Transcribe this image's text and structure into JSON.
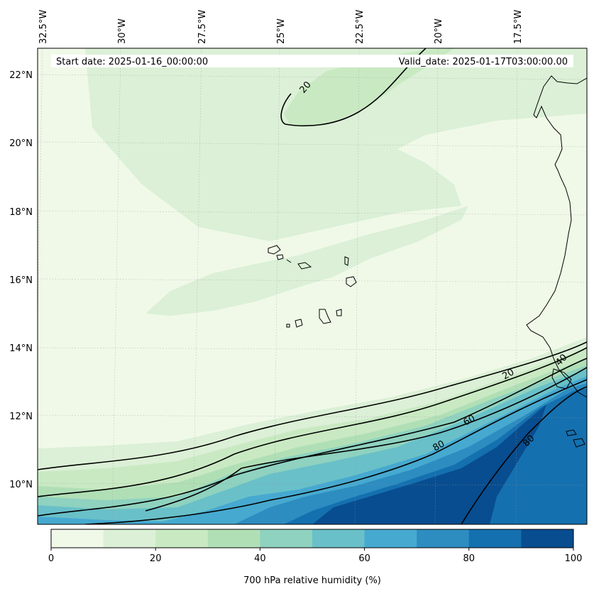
{
  "header": {
    "start_date": "Start date: 2025-01-16_00:00:00",
    "valid_date": "Valid_date: 2025-01-17T03:00:00.00"
  },
  "map": {
    "variable": "700 hPa relative humidity",
    "lon_labels": [
      "32.5°W",
      "30°W",
      "27.5°W",
      "25°W",
      "22.5°W",
      "20°W",
      "17.5°W"
    ],
    "lat_labels": [
      "22°N",
      "20°N",
      "18°N",
      "16°N",
      "14°N",
      "12°N",
      "10°N"
    ],
    "contour_labels": [
      {
        "text": "20",
        "value": 20
      },
      {
        "text": "20",
        "value": 20
      },
      {
        "text": "60",
        "value": 60
      },
      {
        "text": "80",
        "value": 80
      },
      {
        "text": "80",
        "value": 80
      },
      {
        "text": "40",
        "value": 40
      }
    ],
    "gridlines": true,
    "coastlines": true
  },
  "colorbar": {
    "label": "700 hPa relative humidity (%)",
    "ticks": [
      "0",
      "20",
      "40",
      "60",
      "80",
      "100"
    ],
    "range": [
      0,
      100
    ],
    "levels": [
      0,
      10,
      20,
      30,
      40,
      50,
      60,
      70,
      80,
      90,
      100
    ],
    "colors": [
      "#f0f9e8",
      "#dbf0d6",
      "#c9e9c3",
      "#b0dfb6",
      "#8ed2bf",
      "#69c0c8",
      "#46a9d0",
      "#2d8cc0",
      "#1570af",
      "#084d8f"
    ]
  }
}
